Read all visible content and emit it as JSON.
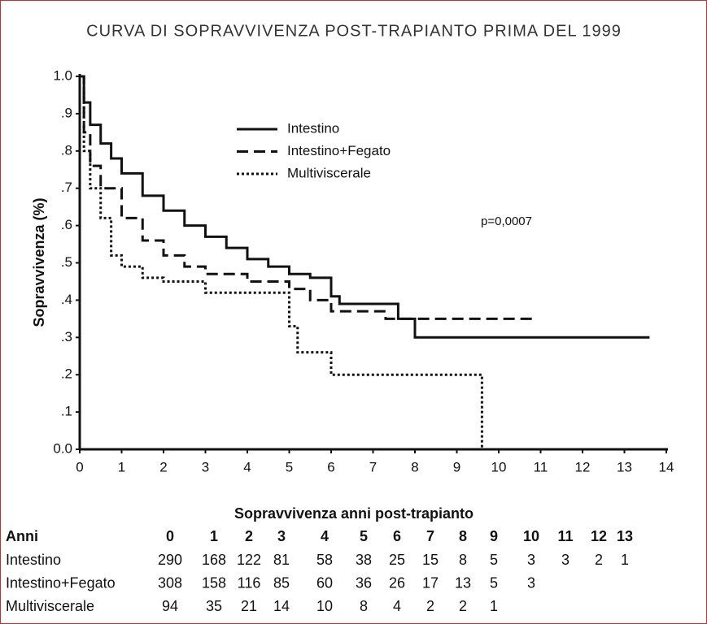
{
  "chart_data": {
    "type": "step",
    "title": "CURVA DI SOPRAVVIVENZA POST-TRAPIANTO PRIMA DEL 1999",
    "y_label": "Sopravvivenza (%)",
    "annotation": "p=0,0007",
    "xlim": [
      0,
      14
    ],
    "ylim": [
      0,
      1
    ],
    "xticks": [
      0,
      1,
      2,
      3,
      4,
      5,
      6,
      7,
      8,
      9,
      10,
      11,
      12,
      13,
      14
    ],
    "yticks": [
      {
        "value": 0,
        "label": "0.0"
      },
      {
        "value": 0.1,
        "label": ".1"
      },
      {
        "value": 0.2,
        "label": ".2"
      },
      {
        "value": 0.3,
        "label": ".3"
      },
      {
        "value": 0.4,
        "label": ".4"
      },
      {
        "value": 0.5,
        "label": ".5"
      },
      {
        "value": 0.6,
        "label": ".6"
      },
      {
        "value": 0.7,
        "label": ".7"
      },
      {
        "value": 0.8,
        "label": ".8"
      },
      {
        "value": 0.9,
        "label": ".9"
      },
      {
        "value": 1,
        "label": "1.0"
      }
    ],
    "series": [
      {
        "name": "Intestino",
        "color": "#111111",
        "style": "solid",
        "x": [
          0,
          0.1,
          0.1,
          0.25,
          0.25,
          0.5,
          0.5,
          0.75,
          0.75,
          1,
          1,
          1.5,
          1.5,
          2,
          2,
          2.5,
          2.5,
          3,
          3,
          3.5,
          3.5,
          4,
          4,
          4.5,
          4.5,
          5,
          5,
          5.5,
          5.5,
          6,
          6,
          6.2,
          6.2,
          7.6,
          7.6,
          8,
          8,
          13.6
        ],
        "values": [
          1.0,
          1.0,
          0.93,
          0.93,
          0.87,
          0.87,
          0.82,
          0.82,
          0.78,
          0.78,
          0.74,
          0.74,
          0.68,
          0.68,
          0.64,
          0.64,
          0.6,
          0.6,
          0.57,
          0.57,
          0.54,
          0.54,
          0.51,
          0.51,
          0.49,
          0.49,
          0.47,
          0.47,
          0.46,
          0.46,
          0.41,
          0.41,
          0.39,
          0.39,
          0.35,
          0.35,
          0.3,
          0.3
        ]
      },
      {
        "name": "Intestino+Fegato",
        "color": "#111111",
        "style": "dashed",
        "x": [
          0,
          0.1,
          0.1,
          0.25,
          0.25,
          0.5,
          0.5,
          1,
          1,
          1.5,
          1.5,
          2,
          2,
          2.5,
          2.5,
          3,
          3,
          4,
          4,
          5,
          5,
          5.5,
          5.5,
          6,
          6,
          7.3,
          7.3,
          10.9
        ],
        "values": [
          1.0,
          1.0,
          0.85,
          0.85,
          0.76,
          0.76,
          0.7,
          0.7,
          0.62,
          0.62,
          0.56,
          0.56,
          0.52,
          0.52,
          0.49,
          0.49,
          0.47,
          0.47,
          0.45,
          0.45,
          0.43,
          0.43,
          0.4,
          0.4,
          0.37,
          0.37,
          0.35,
          0.35
        ]
      },
      {
        "name": "Multiviscerale",
        "color": "#111111",
        "style": "dotted",
        "x": [
          0,
          0.1,
          0.1,
          0.25,
          0.25,
          0.5,
          0.5,
          0.75,
          0.75,
          1,
          1,
          1.5,
          1.5,
          2,
          2,
          3,
          3,
          5,
          5,
          5.2,
          5.2,
          6,
          6,
          9.6,
          9.6
        ],
        "values": [
          1.0,
          1.0,
          0.8,
          0.8,
          0.7,
          0.7,
          0.62,
          0.62,
          0.52,
          0.52,
          0.49,
          0.49,
          0.46,
          0.46,
          0.45,
          0.45,
          0.42,
          0.42,
          0.33,
          0.33,
          0.26,
          0.26,
          0.2,
          0.2,
          0.0
        ]
      }
    ]
  },
  "table": {
    "title": "Sopravvivenza anni post-trapianto",
    "header": [
      "Anni",
      "0",
      "1",
      "2",
      "3",
      "4",
      "5",
      "6",
      "7",
      "8",
      "9",
      "10",
      "11",
      "12",
      "13"
    ],
    "rows": [
      [
        "Intestino",
        290,
        168,
        122,
        81,
        58,
        38,
        25,
        15,
        8,
        5,
        3,
        3,
        2,
        1
      ],
      [
        "Intestino+Fegato",
        308,
        158,
        116,
        85,
        60,
        36,
        26,
        17,
        13,
        5,
        3
      ],
      [
        "Multiviscerale",
        94,
        35,
        21,
        14,
        10,
        8,
        4,
        2,
        2,
        1
      ]
    ]
  }
}
